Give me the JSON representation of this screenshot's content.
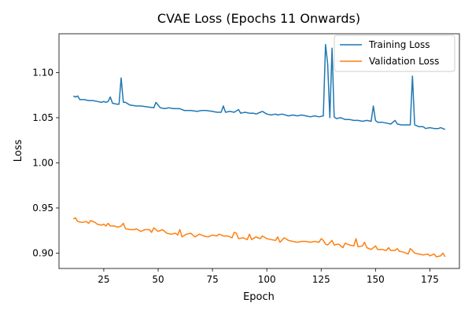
{
  "chart_data": {
    "type": "line",
    "title": "CVAE Loss (Epochs 11 Onwards)",
    "xlabel": "Epoch",
    "ylabel": "Loss",
    "xlim": [
      4.4,
      188.6
    ],
    "ylim": [
      0.883,
      1.143
    ],
    "xticks": [
      25,
      50,
      75,
      100,
      125,
      150,
      175
    ],
    "yticks": [
      0.9,
      0.95,
      1.0,
      1.05,
      1.1
    ],
    "legend_position": "top-right",
    "grid": false,
    "series": [
      {
        "name": "Training Loss",
        "color": "#1f77b4",
        "points": [
          [
            11,
            1.074
          ],
          [
            12,
            1.073
          ],
          [
            13,
            1.074
          ],
          [
            14,
            1.07
          ],
          [
            16,
            1.07
          ],
          [
            18,
            1.069
          ],
          [
            20,
            1.069
          ],
          [
            22,
            1.068
          ],
          [
            24,
            1.067
          ],
          [
            25,
            1.068
          ],
          [
            26,
            1.067
          ],
          [
            27,
            1.068
          ],
          [
            28,
            1.073
          ],
          [
            29,
            1.066
          ],
          [
            31,
            1.065
          ],
          [
            32,
            1.065
          ],
          [
            33,
            1.094
          ],
          [
            34,
            1.067
          ],
          [
            35,
            1.067
          ],
          [
            37,
            1.064
          ],
          [
            40,
            1.063
          ],
          [
            42,
            1.063
          ],
          [
            45,
            1.062
          ],
          [
            48,
            1.061
          ],
          [
            49,
            1.067
          ],
          [
            51,
            1.061
          ],
          [
            53,
            1.06
          ],
          [
            55,
            1.061
          ],
          [
            57,
            1.06
          ],
          [
            60,
            1.06
          ],
          [
            62,
            1.058
          ],
          [
            65,
            1.058
          ],
          [
            68,
            1.057
          ],
          [
            70,
            1.058
          ],
          [
            72,
            1.058
          ],
          [
            75,
            1.057
          ],
          [
            77,
            1.056
          ],
          [
            79,
            1.056
          ],
          [
            80,
            1.063
          ],
          [
            81,
            1.056
          ],
          [
            83,
            1.057
          ],
          [
            85,
            1.056
          ],
          [
            87,
            1.059
          ],
          [
            88,
            1.055
          ],
          [
            90,
            1.056
          ],
          [
            92,
            1.055
          ],
          [
            94,
            1.055
          ],
          [
            95,
            1.054
          ],
          [
            97,
            1.056
          ],
          [
            98,
            1.057
          ],
          [
            100,
            1.054
          ],
          [
            102,
            1.053
          ],
          [
            104,
            1.054
          ],
          [
            105,
            1.053
          ],
          [
            107,
            1.054
          ],
          [
            110,
            1.052
          ],
          [
            112,
            1.053
          ],
          [
            114,
            1.052
          ],
          [
            116,
            1.053
          ],
          [
            118,
            1.052
          ],
          [
            120,
            1.051
          ],
          [
            122,
            1.052
          ],
          [
            124,
            1.051
          ],
          [
            126,
            1.052
          ],
          [
            127,
            1.131
          ],
          [
            128,
            1.11
          ],
          [
            129,
            1.05
          ],
          [
            130,
            1.127
          ],
          [
            131,
            1.051
          ],
          [
            132,
            1.049
          ],
          [
            134,
            1.05
          ],
          [
            136,
            1.048
          ],
          [
            138,
            1.048
          ],
          [
            140,
            1.047
          ],
          [
            142,
            1.047
          ],
          [
            144,
            1.046
          ],
          [
            146,
            1.047
          ],
          [
            148,
            1.046
          ],
          [
            149,
            1.063
          ],
          [
            150,
            1.047
          ],
          [
            151,
            1.045
          ],
          [
            153,
            1.045
          ],
          [
            155,
            1.044
          ],
          [
            157,
            1.043
          ],
          [
            159,
            1.047
          ],
          [
            160,
            1.043
          ],
          [
            162,
            1.042
          ],
          [
            164,
            1.042
          ],
          [
            166,
            1.042
          ],
          [
            167,
            1.096
          ],
          [
            168,
            1.042
          ],
          [
            170,
            1.04
          ],
          [
            172,
            1.04
          ],
          [
            173,
            1.038
          ],
          [
            175,
            1.039
          ],
          [
            177,
            1.038
          ],
          [
            179,
            1.038
          ],
          [
            180,
            1.039
          ],
          [
            182,
            1.037
          ]
        ]
      },
      {
        "name": "Validation Loss",
        "color": "#ff7f0e",
        "points": [
          [
            11,
            0.938
          ],
          [
            12,
            0.939
          ],
          [
            13,
            0.935
          ],
          [
            15,
            0.934
          ],
          [
            17,
            0.935
          ],
          [
            18,
            0.933
          ],
          [
            19,
            0.936
          ],
          [
            21,
            0.934
          ],
          [
            22,
            0.932
          ],
          [
            24,
            0.931
          ],
          [
            25,
            0.932
          ],
          [
            26,
            0.93
          ],
          [
            27,
            0.933
          ],
          [
            28,
            0.93
          ],
          [
            30,
            0.93
          ],
          [
            31,
            0.929
          ],
          [
            32,
            0.929
          ],
          [
            33,
            0.93
          ],
          [
            34,
            0.933
          ],
          [
            35,
            0.927
          ],
          [
            37,
            0.926
          ],
          [
            39,
            0.926
          ],
          [
            40,
            0.927
          ],
          [
            42,
            0.924
          ],
          [
            44,
            0.926
          ],
          [
            46,
            0.926
          ],
          [
            47,
            0.923
          ],
          [
            48,
            0.928
          ],
          [
            50,
            0.924
          ],
          [
            52,
            0.926
          ],
          [
            54,
            0.922
          ],
          [
            56,
            0.921
          ],
          [
            58,
            0.922
          ],
          [
            59,
            0.92
          ],
          [
            60,
            0.926
          ],
          [
            61,
            0.918
          ],
          [
            63,
            0.921
          ],
          [
            65,
            0.922
          ],
          [
            67,
            0.918
          ],
          [
            69,
            0.921
          ],
          [
            71,
            0.919
          ],
          [
            73,
            0.918
          ],
          [
            75,
            0.92
          ],
          [
            77,
            0.919
          ],
          [
            78,
            0.921
          ],
          [
            80,
            0.919
          ],
          [
            82,
            0.919
          ],
          [
            84,
            0.917
          ],
          [
            85,
            0.923
          ],
          [
            86,
            0.922
          ],
          [
            87,
            0.916
          ],
          [
            89,
            0.917
          ],
          [
            91,
            0.915
          ],
          [
            92,
            0.921
          ],
          [
            93,
            0.915
          ],
          [
            95,
            0.918
          ],
          [
            97,
            0.916
          ],
          [
            98,
            0.919
          ],
          [
            100,
            0.916
          ],
          [
            102,
            0.915
          ],
          [
            104,
            0.914
          ],
          [
            105,
            0.918
          ],
          [
            106,
            0.912
          ],
          [
            108,
            0.917
          ],
          [
            110,
            0.914
          ],
          [
            112,
            0.913
          ],
          [
            114,
            0.912
          ],
          [
            116,
            0.913
          ],
          [
            118,
            0.913
          ],
          [
            120,
            0.912
          ],
          [
            122,
            0.913
          ],
          [
            124,
            0.912
          ],
          [
            125,
            0.916
          ],
          [
            126,
            0.914
          ],
          [
            127,
            0.91
          ],
          [
            128,
            0.909
          ],
          [
            130,
            0.914
          ],
          [
            131,
            0.909
          ],
          [
            133,
            0.91
          ],
          [
            135,
            0.906
          ],
          [
            136,
            0.911
          ],
          [
            138,
            0.909
          ],
          [
            140,
            0.908
          ],
          [
            141,
            0.916
          ],
          [
            142,
            0.907
          ],
          [
            144,
            0.908
          ],
          [
            145,
            0.912
          ],
          [
            146,
            0.906
          ],
          [
            148,
            0.904
          ],
          [
            150,
            0.908
          ],
          [
            151,
            0.904
          ],
          [
            153,
            0.904
          ],
          [
            155,
            0.903
          ],
          [
            156,
            0.906
          ],
          [
            157,
            0.903
          ],
          [
            159,
            0.903
          ],
          [
            160,
            0.905
          ],
          [
            161,
            0.902
          ],
          [
            163,
            0.901
          ],
          [
            165,
            0.899
          ],
          [
            166,
            0.905
          ],
          [
            167,
            0.903
          ],
          [
            168,
            0.9
          ],
          [
            170,
            0.899
          ],
          [
            172,
            0.898
          ],
          [
            174,
            0.899
          ],
          [
            175,
            0.897
          ],
          [
            177,
            0.899
          ],
          [
            178,
            0.896
          ],
          [
            180,
            0.897
          ],
          [
            181,
            0.9
          ],
          [
            182,
            0.896
          ]
        ]
      }
    ]
  }
}
